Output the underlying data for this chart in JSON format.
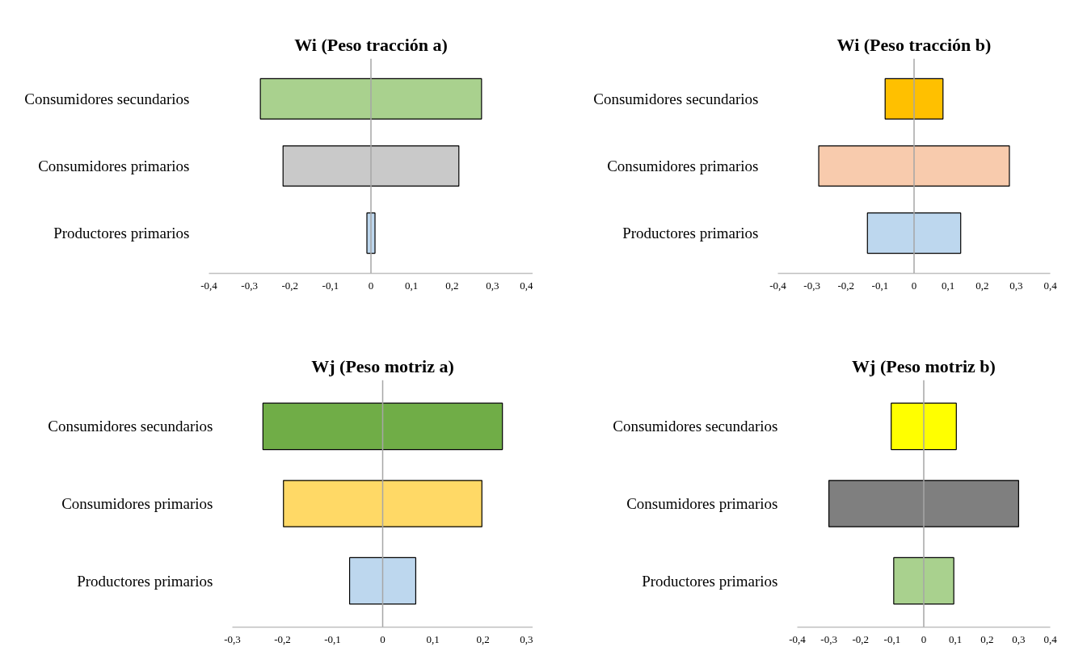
{
  "chart_data": [
    {
      "type": "bar",
      "orientation": "horizontal",
      "title": "Wi (Peso tracción a)",
      "categories": [
        "Consumidores secundarios",
        "Consumidores primarios",
        "Productores primarios"
      ],
      "base": [
        -0.273,
        -0.217,
        -0.01
      ],
      "values": [
        0.546,
        0.434,
        0.02
      ],
      "colors": [
        "#a9d18e",
        "#c9c9c9",
        "#bdd7ee"
      ],
      "xlim": [
        -0.4,
        0.4
      ],
      "xticks": [
        {
          "value": -0.4,
          "label": "-0,4"
        },
        {
          "value": -0.3,
          "label": "-0,3"
        },
        {
          "value": -0.2,
          "label": "-0,2"
        },
        {
          "value": -0.1,
          "label": "-0,1"
        },
        0,
        {
          "value": 0.1,
          "label": "0,1"
        },
        {
          "value": 0.2,
          "label": "0,2"
        },
        {
          "value": 0.3,
          "label": "0,3"
        },
        {
          "value": 0.4,
          "label": "0,4"
        }
      ],
      "ref_lines": [
        {
          "axis": "x",
          "value": 0,
          "color": "#a6a6a6"
        }
      ]
    },
    {
      "type": "bar",
      "orientation": "horizontal",
      "title": "Wi (Peso tracción b)",
      "categories": [
        "Consumidores secundarios",
        "Consumidores primarios",
        "Productores primarios"
      ],
      "base": [
        -0.085,
        -0.28,
        -0.137
      ],
      "values": [
        0.17,
        0.56,
        0.274
      ],
      "colors": [
        "#ffc000",
        "#f8cbad",
        "#bdd7ee"
      ],
      "xlim": [
        -0.4,
        0.4
      ],
      "xticks": [
        {
          "value": -0.4,
          "label": "-0,4"
        },
        {
          "value": -0.3,
          "label": "-0,3"
        },
        {
          "value": -0.2,
          "label": "-0,2"
        },
        {
          "value": -0.1,
          "label": "-0,1"
        },
        0,
        {
          "value": 0.1,
          "label": "0,1"
        },
        {
          "value": 0.2,
          "label": "0,2"
        },
        {
          "value": 0.3,
          "label": "0,3"
        },
        {
          "value": 0.4,
          "label": "0,4"
        }
      ],
      "ref_lines": [
        {
          "axis": "x",
          "value": 0,
          "color": "#a6a6a6"
        }
      ]
    },
    {
      "type": "bar",
      "orientation": "horizontal",
      "title": "Wj (Peso motriz a)",
      "categories": [
        "Consumidores secundarios",
        "Consumidores primarios",
        "Productores primarios"
      ],
      "base": [
        -0.239,
        -0.198,
        -0.066
      ],
      "values": [
        0.478,
        0.396,
        0.132
      ],
      "colors": [
        "#70ad47",
        "#ffd966",
        "#bdd7ee"
      ],
      "xlim": [
        -0.3,
        0.3
      ],
      "xticks": [
        {
          "value": -0.3,
          "label": "-0,3"
        },
        {
          "value": -0.2,
          "label": "-0,2"
        },
        {
          "value": -0.1,
          "label": "-0,1"
        },
        0,
        {
          "value": 0.1,
          "label": "0,1"
        },
        {
          "value": 0.2,
          "label": "0,2"
        },
        {
          "value": 0.3,
          "label": "0,3"
        }
      ],
      "ref_lines": [
        {
          "axis": "x",
          "value": 0,
          "color": "#a6a6a6"
        }
      ]
    },
    {
      "type": "bar",
      "orientation": "horizontal",
      "title": "Wj (Peso motriz b)",
      "categories": [
        "Consumidores secundarios",
        "Consumidores primarios",
        "Productores primarios"
      ],
      "base": [
        -0.103,
        -0.3,
        -0.095
      ],
      "values": [
        0.206,
        0.6,
        0.19
      ],
      "colors": [
        "#ffff00",
        "#7f7f7f",
        "#a9d18e"
      ],
      "xlim": [
        -0.4,
        0.4
      ],
      "xticks": [
        {
          "value": -0.4,
          "label": "-0,4"
        },
        {
          "value": -0.3,
          "label": "-0,3"
        },
        {
          "value": -0.2,
          "label": "-0,2"
        },
        {
          "value": -0.1,
          "label": "-0,1"
        },
        0,
        {
          "value": 0.1,
          "label": "0,1"
        },
        {
          "value": 0.2,
          "label": "0,2"
        },
        {
          "value": 0.3,
          "label": "0,3"
        },
        {
          "value": 0.4,
          "label": "0,4"
        }
      ],
      "ref_lines": [
        {
          "axis": "x",
          "value": 0,
          "color": "#a6a6a6"
        }
      ]
    }
  ]
}
